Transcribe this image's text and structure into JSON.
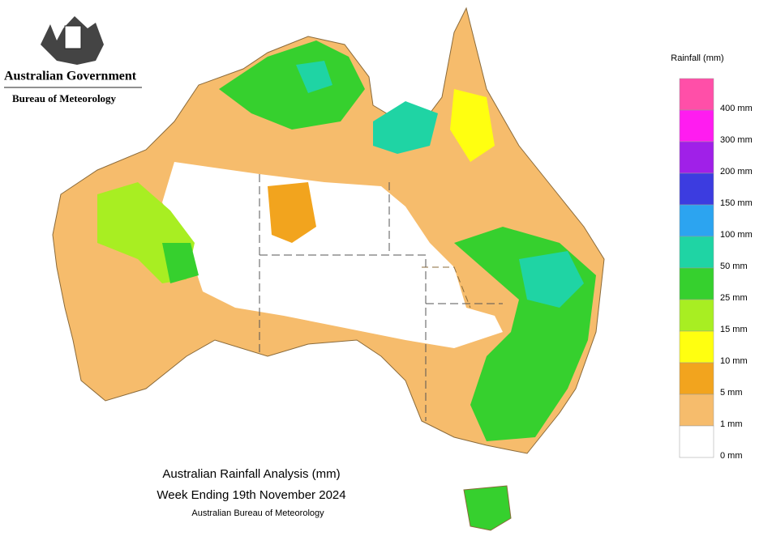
{
  "header": {
    "agency": "Australian Government",
    "bureau": "Bureau of Meteorology"
  },
  "map": {
    "title": "Australian Rainfall Analysis (mm)",
    "subtitle": "Week Ending 19th November 2024",
    "source": "Australian Bureau of Meteorology"
  },
  "legend": {
    "title": "Rainfall (mm)",
    "colors": [
      "#ff4fa8",
      "#ff1cf0",
      "#a020e8",
      "#3c3ce0",
      "#2ca4f0",
      "#1fd4a4",
      "#36d02e",
      "#a8ee22",
      "#ffff10",
      "#f2a41e",
      "#f6bc6c",
      "#ffffff"
    ],
    "labels": [
      "400 mm",
      "300 mm",
      "200 mm",
      "150 mm",
      "100 mm",
      "50 mm",
      "25 mm",
      "15 mm",
      "10 mm",
      "5 mm",
      "1 mm",
      "0 mm"
    ]
  }
}
